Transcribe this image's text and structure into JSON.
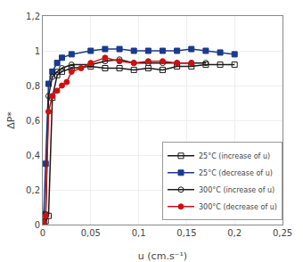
{
  "chart_data": {
    "type": "line",
    "xlabel": "u (cm.s⁻¹)",
    "ylabel": "ΔP*",
    "xlim": [
      0,
      0.25
    ],
    "ylim": [
      0,
      1.2
    ],
    "xticks": [
      0,
      {
        "value": 0.05,
        "label": "0,05"
      },
      {
        "value": 0.1,
        "label": "0,1"
      },
      {
        "value": 0.15,
        "label": "0,15"
      },
      {
        "value": 0.2,
        "label": "0,2"
      },
      {
        "value": 0.25,
        "label": "0,25"
      }
    ],
    "yticks": [
      0,
      {
        "value": 0.2,
        "label": "0,2"
      },
      {
        "value": 0.4,
        "label": "0,4"
      },
      {
        "value": 0.6,
        "label": "0,6"
      },
      {
        "value": 0.8,
        "label": "0,8"
      },
      1,
      {
        "value": 1.2,
        "label": "1,2"
      }
    ],
    "grid": true,
    "legend": "lower right",
    "series": [
      {
        "name": "25°C (increase of u)",
        "color": "#1a1a1a",
        "marker": "square-open",
        "x": [
          0.001,
          0.003,
          0.006,
          0.01,
          0.015,
          0.02,
          0.03,
          0.05,
          0.065,
          0.08,
          0.095,
          0.11,
          0.125,
          0.14,
          0.155,
          0.17,
          0.185,
          0.2
        ],
        "values": [
          0.01,
          0.02,
          0.05,
          0.73,
          0.86,
          0.88,
          0.9,
          0.91,
          0.9,
          0.9,
          0.89,
          0.9,
          0.89,
          0.91,
          0.91,
          0.92,
          0.92,
          0.92
        ]
      },
      {
        "name": "25°C (decrease of u)",
        "color": "#1a3a8a",
        "marker": "square",
        "x": [
          0.001,
          0.003,
          0.006,
          0.01,
          0.015,
          0.02,
          0.03,
          0.05,
          0.065,
          0.08,
          0.095,
          0.11,
          0.125,
          0.14,
          0.155,
          0.17,
          0.185,
          0.2
        ],
        "values": [
          0.06,
          0.35,
          0.81,
          0.88,
          0.93,
          0.96,
          0.98,
          1.0,
          1.01,
          1.01,
          1.0,
          1.0,
          1.0,
          1.0,
          1.01,
          1.0,
          0.99,
          0.98
        ]
      },
      {
        "name": "300°C (increase of u)",
        "color": "#1a1a1a",
        "marker": "circle-open",
        "x": [
          0.001,
          0.003,
          0.006,
          0.01,
          0.015,
          0.02,
          0.03,
          0.05,
          0.065,
          0.08,
          0.095,
          0.11,
          0.125,
          0.14,
          0.155,
          0.17
        ],
        "values": [
          0.02,
          0.06,
          0.74,
          0.85,
          0.88,
          0.9,
          0.92,
          0.92,
          0.94,
          0.95,
          0.93,
          0.93,
          0.93,
          0.93,
          0.93,
          0.93
        ]
      },
      {
        "name": "300°C (decrease of u)",
        "color": "#cc1111",
        "marker": "circle",
        "x": [
          0.001,
          0.003,
          0.006,
          0.01,
          0.015,
          0.02,
          0.025,
          0.03,
          0.04,
          0.05,
          0.065,
          0.08,
          0.095,
          0.11,
          0.125,
          0.14,
          0.155
        ],
        "values": [
          0.01,
          0.05,
          0.65,
          0.74,
          0.77,
          0.8,
          0.82,
          0.88,
          0.9,
          0.93,
          0.96,
          0.94,
          0.93,
          0.94,
          0.94,
          0.93,
          0.93
        ]
      }
    ]
  }
}
